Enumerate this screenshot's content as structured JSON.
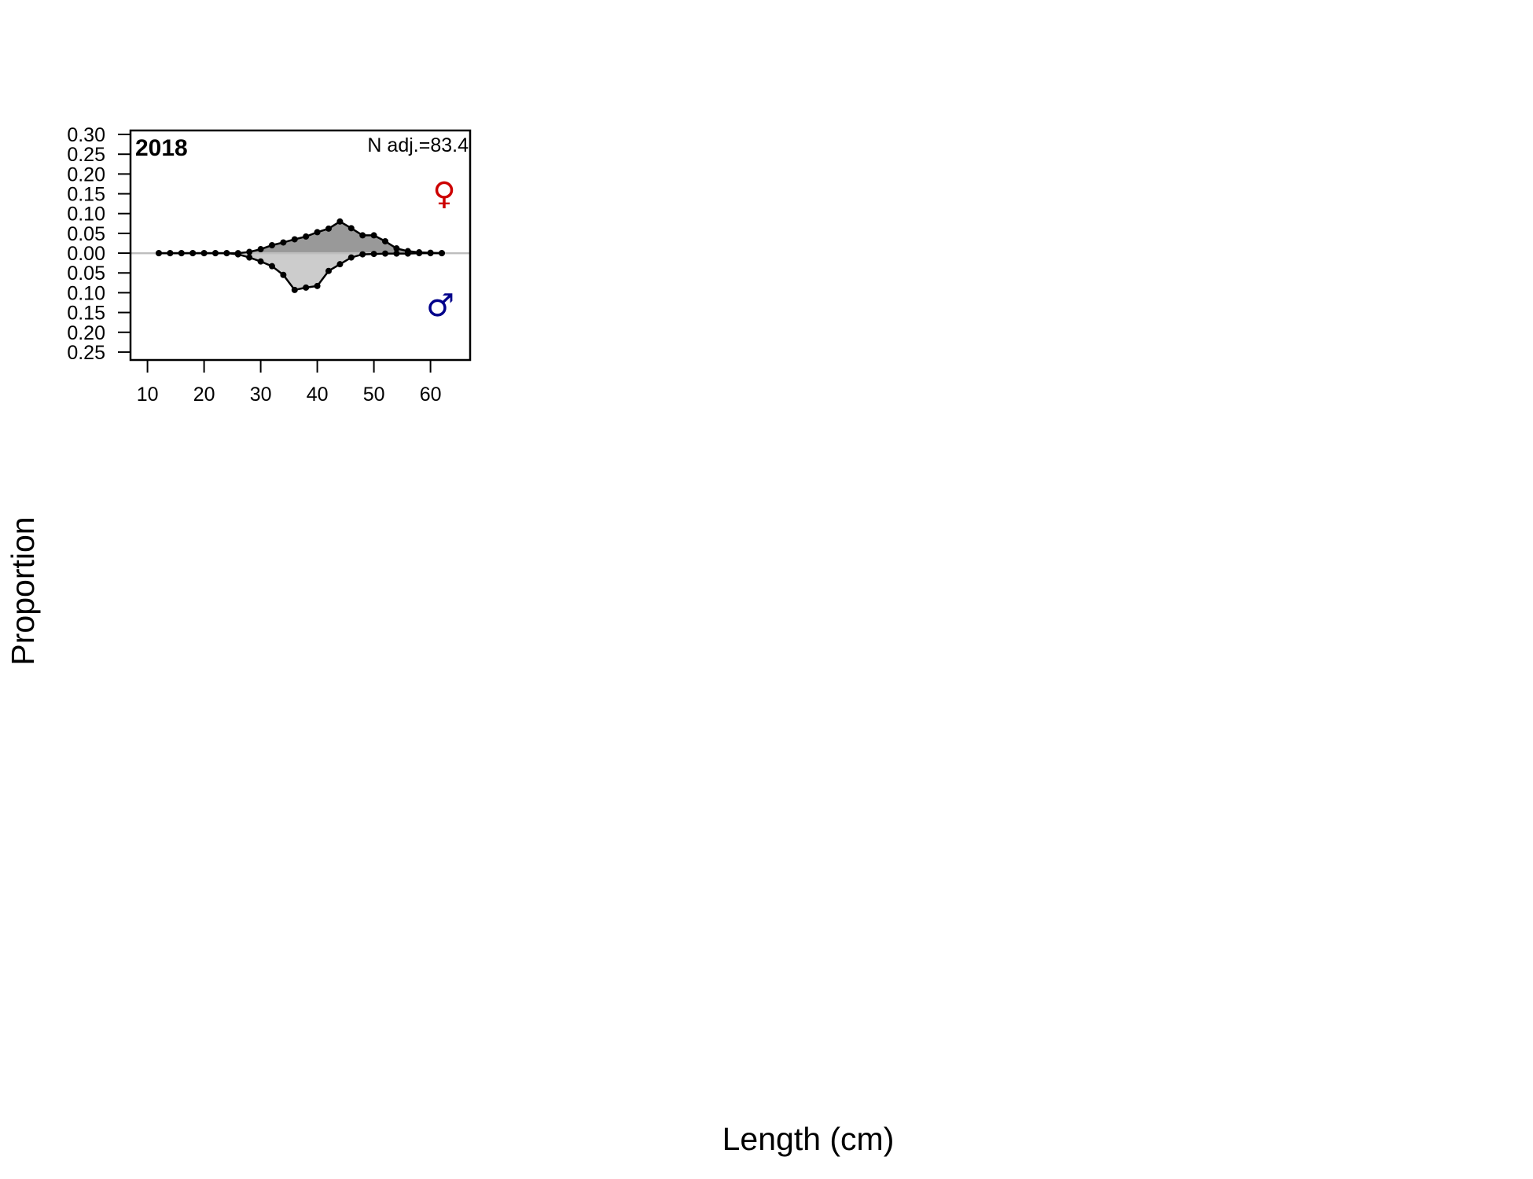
{
  "chart_data": {
    "type": "area",
    "panel_label": "2018",
    "n_text": "N adj.=83.4",
    "xlabel": "Length (cm)",
    "ylabel": "Proportion",
    "xlim": [
      7,
      67
    ],
    "ylim": [
      -0.27,
      0.31
    ],
    "x_ticks": [
      10,
      20,
      30,
      40,
      50,
      60
    ],
    "y_ticks": [
      -0.25,
      -0.2,
      -0.15,
      -0.1,
      -0.05,
      0.0,
      0.05,
      0.1,
      0.15,
      0.2,
      0.25,
      0.3
    ],
    "y_tick_labels": [
      "0.25",
      "0.20",
      "0.15",
      "0.10",
      "0.05",
      "0.00",
      "0.05",
      "0.10",
      "0.15",
      "0.20",
      "0.25",
      "0.30"
    ],
    "female_symbol": "♀",
    "male_symbol": "♂",
    "x": [
      12,
      14,
      16,
      18,
      20,
      22,
      24,
      26,
      28,
      30,
      32,
      34,
      36,
      38,
      40,
      42,
      44,
      46,
      48,
      50,
      52,
      54,
      56,
      58,
      60,
      62
    ],
    "series": [
      {
        "name": "female",
        "values": [
          0,
          0,
          0,
          0,
          0,
          0,
          0,
          0,
          0.003,
          0.01,
          0.02,
          0.027,
          0.035,
          0.042,
          0.053,
          0.062,
          0.08,
          0.063,
          0.045,
          0.045,
          0.03,
          0.012,
          0.005,
          0.002,
          0.001,
          0
        ]
      },
      {
        "name": "male",
        "values": [
          0,
          0,
          0,
          0,
          0,
          0,
          0,
          0.003,
          0.011,
          0.021,
          0.033,
          0.055,
          0.093,
          0.087,
          0.083,
          0.045,
          0.028,
          0.011,
          0.003,
          0.002,
          0.001,
          0.001,
          0.001,
          0,
          0,
          0
        ]
      }
    ],
    "colors": {
      "female_fill": "#999999",
      "male_fill": "#cccccc",
      "zero_line": "#bebebe",
      "points": "#000000",
      "female_symbol": "#cd0000",
      "male_symbol": "#00008b"
    }
  }
}
